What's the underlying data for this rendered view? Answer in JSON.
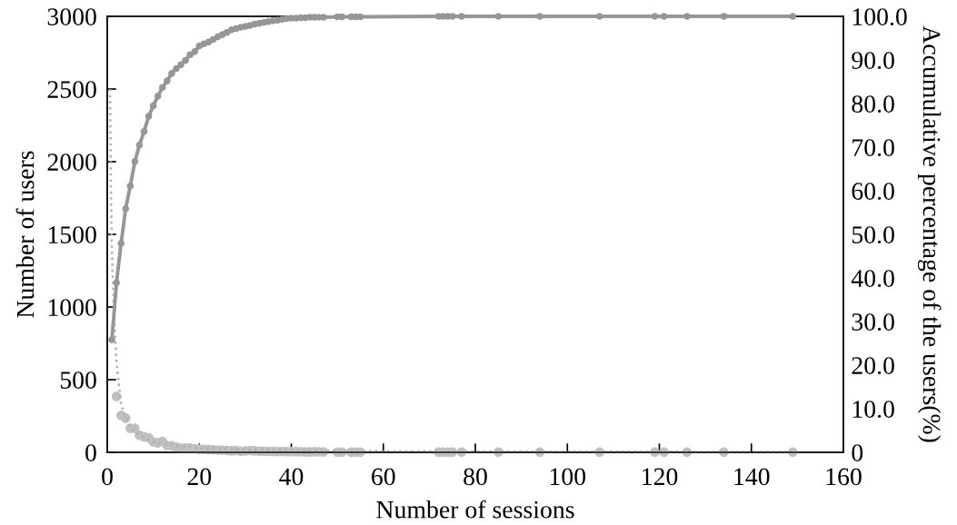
{
  "chart_data": {
    "type": "scatter",
    "xlabel": "Number of sessions",
    "ylabel": "Number of users",
    "y2label": "Accumulative percentage of the users(%)",
    "xlim": [
      0,
      160
    ],
    "xticks": [
      0,
      20,
      40,
      60,
      80,
      100,
      120,
      140,
      160
    ],
    "ylim": [
      0,
      3000
    ],
    "yticks": [
      0,
      500,
      1000,
      1500,
      2000,
      2500,
      3000
    ],
    "y2lim": [
      0,
      100
    ],
    "y2ticks": [
      {
        "value": 0,
        "label": "0"
      },
      {
        "value": 10,
        "label": "10.0"
      },
      {
        "value": 20,
        "label": "20.0"
      },
      {
        "value": 30,
        "label": "30.0"
      },
      {
        "value": 40,
        "label": "40.0"
      },
      {
        "value": 50,
        "label": "50.0"
      },
      {
        "value": 60,
        "label": "60.0"
      },
      {
        "value": 70,
        "label": "70.0"
      },
      {
        "value": 80,
        "label": "80.0"
      },
      {
        "value": 90,
        "label": "90.0"
      },
      {
        "value": 100,
        "label": "100.0"
      }
    ],
    "grid": false,
    "series": [
      {
        "color": "#c0c0c0",
        "marker": "circle",
        "x": [
          2,
          3,
          4,
          5,
          6,
          7,
          8,
          9,
          10,
          11,
          12,
          13,
          14,
          15,
          16,
          17,
          18,
          19,
          20,
          21,
          22,
          23,
          24,
          25,
          26,
          27,
          28,
          29,
          30,
          31,
          32,
          33,
          34,
          35,
          36,
          37,
          38,
          39,
          40,
          41,
          42,
          43,
          44,
          45,
          46,
          47,
          50,
          51,
          53,
          54,
          55,
          72,
          73,
          74,
          75,
          77,
          85,
          94,
          107,
          119,
          121,
          126,
          134,
          149
        ],
        "values": [
          385,
          255,
          235,
          165,
          165,
          117,
          108,
          100,
          72,
          65,
          75,
          47,
          45,
          35,
          30,
          30,
          30,
          25,
          22,
          20,
          18,
          17,
          15,
          15,
          12,
          10,
          13,
          8,
          9,
          12,
          10,
          7,
          8,
          6,
          6,
          5,
          6,
          5,
          4,
          5,
          4,
          3,
          3,
          4,
          3,
          3,
          2,
          2,
          2,
          2,
          2,
          1,
          1,
          1,
          1,
          1,
          1,
          1,
          1,
          1,
          1,
          1,
          1,
          1
        ]
      },
      {
        "type": "line",
        "color": "#b0b0b0",
        "marker": "none",
        "line_style": "dotted",
        "x": [
          0.6,
          0.8,
          1,
          1.4,
          2,
          2.4,
          3,
          4,
          5,
          6,
          8,
          10,
          15,
          20,
          30,
          50,
          80,
          149
        ],
        "values": [
          2500,
          1800,
          1400,
          1000,
          620,
          500,
          330,
          240,
          180,
          140,
          100,
          75,
          45,
          30,
          18,
          10,
          6,
          3
        ]
      },
      {
        "type": "line",
        "axis": "y2",
        "color": "#969696",
        "marker": "circle",
        "line_style": "solid",
        "x": [
          1,
          2,
          3,
          4,
          5,
          6,
          7,
          8,
          9,
          10,
          11,
          12,
          13,
          14,
          15,
          16,
          17,
          18,
          19,
          20,
          21,
          22,
          23,
          24,
          25,
          26,
          27,
          28,
          29,
          30,
          31,
          32,
          33,
          34,
          35,
          36,
          37,
          38,
          39,
          40,
          41,
          42,
          43,
          44,
          45,
          46,
          47,
          50,
          51,
          53,
          54,
          55,
          72,
          73,
          74,
          75,
          77,
          85,
          94,
          107,
          119,
          121,
          126,
          134,
          149
        ],
        "values": [
          25.8,
          38.9,
          47.9,
          55.9,
          61.1,
          66.7,
          70.5,
          73.6,
          77.1,
          79.5,
          81.7,
          83.7,
          85.2,
          86.9,
          88.0,
          88.9,
          89.9,
          91.2,
          91.9,
          93.2,
          93.7,
          94.1,
          94.7,
          95.3,
          95.8,
          96.3,
          96.9,
          97.2,
          97.5,
          97.7,
          97.9,
          98.2,
          98.4,
          98.6,
          98.8,
          99.0,
          99.1,
          99.3,
          99.5,
          99.6,
          99.6,
          99.7,
          99.7,
          99.8,
          99.8,
          99.8,
          99.8,
          99.9,
          99.9,
          99.9,
          99.9,
          99.9,
          100,
          100,
          100,
          100,
          100,
          100,
          100,
          100,
          100,
          100,
          100,
          100,
          100
        ]
      }
    ]
  }
}
